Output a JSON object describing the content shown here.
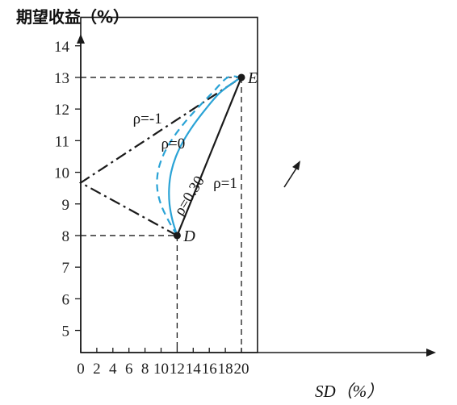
{
  "chart_data": {
    "type": "line",
    "ylabel": "期望收益（%）",
    "xlabel": "SD（%）",
    "xlim": [
      0,
      22
    ],
    "ylim": [
      4.3,
      14.9
    ],
    "x_ticks": [
      0,
      2,
      4,
      6,
      8,
      10,
      12,
      14,
      16,
      18,
      20
    ],
    "y_ticks": [
      5,
      6,
      7,
      8,
      9,
      10,
      11,
      12,
      13,
      14
    ],
    "grid": false,
    "points": [
      {
        "name": "D",
        "x": 12,
        "y": 8
      },
      {
        "name": "E",
        "x": 20,
        "y": 13
      }
    ],
    "series": [
      {
        "name": "ρ=1",
        "style": "solid",
        "color": "#1a1a1a",
        "x": [
          12,
          20
        ],
        "y": [
          8,
          13
        ]
      },
      {
        "name": "ρ=-1",
        "style": "dashdot",
        "color": "#1a1a1a",
        "x": [
          12,
          0,
          20
        ],
        "y": [
          8,
          9.67,
          13
        ]
      },
      {
        "name": "ρ=0",
        "style": "dashed",
        "color": "#2aa3d6",
        "x": [
          12.0,
          10.86,
          9.96,
          9.52,
          9.6,
          10.2,
          11.26,
          12.7,
          14.42,
          16.33,
          18.3,
          20.0
        ],
        "y": [
          8.0,
          8.5,
          9.0,
          9.5,
          10.0,
          10.5,
          11.0,
          11.5,
          12.0,
          12.5,
          13.0,
          13.0
        ]
      },
      {
        "name": "ρ=0.30",
        "style": "solid",
        "color": "#2aa3d6",
        "x": [
          12.0,
          11.4,
          11.05,
          11.0,
          11.25,
          11.85,
          12.8,
          14.05,
          15.55,
          17.25,
          19.05,
          20.0
        ],
        "y": [
          8.0,
          8.5,
          9.0,
          9.5,
          10.0,
          10.5,
          11.0,
          11.5,
          12.0,
          12.5,
          12.85,
          13.0
        ]
      }
    ],
    "annotations": [
      {
        "text": "ρ=-1",
        "x": 6.5,
        "y": 11.55
      },
      {
        "text": "ρ=0",
        "x": 10.0,
        "y": 10.75
      },
      {
        "text": "ρ=1",
        "x": 16.5,
        "y": 9.5
      },
      {
        "text": "ρ=0.30",
        "x": 12.6,
        "y": 8.6,
        "rotate": -58
      }
    ],
    "guides": [
      {
        "from": [
          0,
          13
        ],
        "to": [
          20,
          13
        ]
      },
      {
        "from": [
          20,
          13
        ],
        "to": [
          20,
          4.3
        ]
      },
      {
        "from": [
          0,
          8
        ],
        "to": [
          12,
          8
        ]
      },
      {
        "from": [
          12,
          8
        ],
        "to": [
          12,
          4.3
        ]
      }
    ]
  }
}
